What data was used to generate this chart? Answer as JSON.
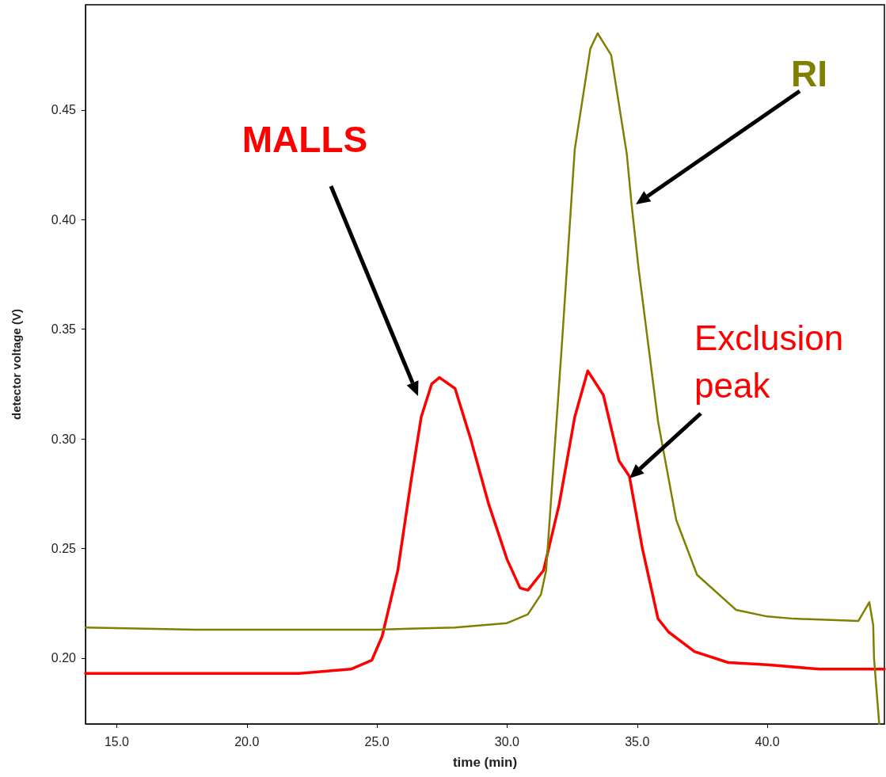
{
  "chart_data": {
    "type": "line",
    "xlabel": "time (min)",
    "ylabel": "detector voltage (V)",
    "xlim": [
      13.8,
      44.5
    ],
    "ylim": [
      0.17,
      0.498
    ],
    "xticks": [
      {
        "value": 15,
        "label": "15.0"
      },
      {
        "value": 20,
        "label": "20.0"
      },
      {
        "value": 25,
        "label": "25.0"
      },
      {
        "value": 30,
        "label": "30.0"
      },
      {
        "value": 35,
        "label": "35.0"
      },
      {
        "value": 40,
        "label": "40.0"
      }
    ],
    "yticks": [
      {
        "value": 0.2,
        "label": "0.20"
      },
      {
        "value": 0.25,
        "label": "0.25"
      },
      {
        "value": 0.3,
        "label": "0.30"
      },
      {
        "value": 0.35,
        "label": "0.35"
      },
      {
        "value": 0.4,
        "label": "0.40"
      },
      {
        "value": 0.45,
        "label": "0.45"
      }
    ],
    "grid": false,
    "legend": false,
    "marker": "none",
    "line_style": "solid",
    "series": [
      {
        "name": "MALLS",
        "color": "#ff0000",
        "x": [
          13.8,
          16,
          18,
          20,
          22,
          23,
          24,
          24.8,
          25.2,
          25.8,
          26.3,
          26.7,
          27.1,
          27.4,
          28,
          28.6,
          29.3,
          30,
          30.5,
          30.8,
          31.4,
          32,
          32.6,
          33.1,
          33.7,
          34.3,
          34.7,
          35.2,
          35.8,
          36.2,
          37.2,
          38.5,
          40,
          42,
          44.5
        ],
        "values": [
          0.193,
          0.193,
          0.193,
          0.193,
          0.193,
          0.194,
          0.195,
          0.199,
          0.21,
          0.24,
          0.28,
          0.31,
          0.325,
          0.328,
          0.323,
          0.3,
          0.27,
          0.245,
          0.232,
          0.231,
          0.24,
          0.27,
          0.31,
          0.331,
          0.32,
          0.29,
          0.283,
          0.25,
          0.218,
          0.212,
          0.203,
          0.198,
          0.197,
          0.195,
          0.195
        ]
      },
      {
        "name": "RI",
        "color": "#808000",
        "x": [
          13.8,
          18,
          22,
          25,
          28,
          30,
          30.8,
          31.3,
          31.5,
          32.1,
          32.6,
          33.2,
          33.48,
          34,
          34.6,
          34.78,
          35.05,
          35.8,
          36.5,
          37.3,
          38.8,
          40,
          41,
          43.5,
          43.92,
          44.07,
          44.1,
          44.3
        ],
        "values": [
          0.214,
          0.213,
          0.213,
          0.213,
          0.214,
          0.216,
          0.22,
          0.229,
          0.24,
          0.342,
          0.432,
          0.478,
          0.485,
          0.475,
          0.43,
          0.4075,
          0.378,
          0.308,
          0.263,
          0.238,
          0.222,
          0.219,
          0.218,
          0.217,
          0.2255,
          0.215,
          0.2,
          0.17
        ]
      }
    ],
    "annotations": [
      {
        "text": "Exclusion peak",
        "x": 34.7,
        "y": 0.282
      }
    ]
  }
}
